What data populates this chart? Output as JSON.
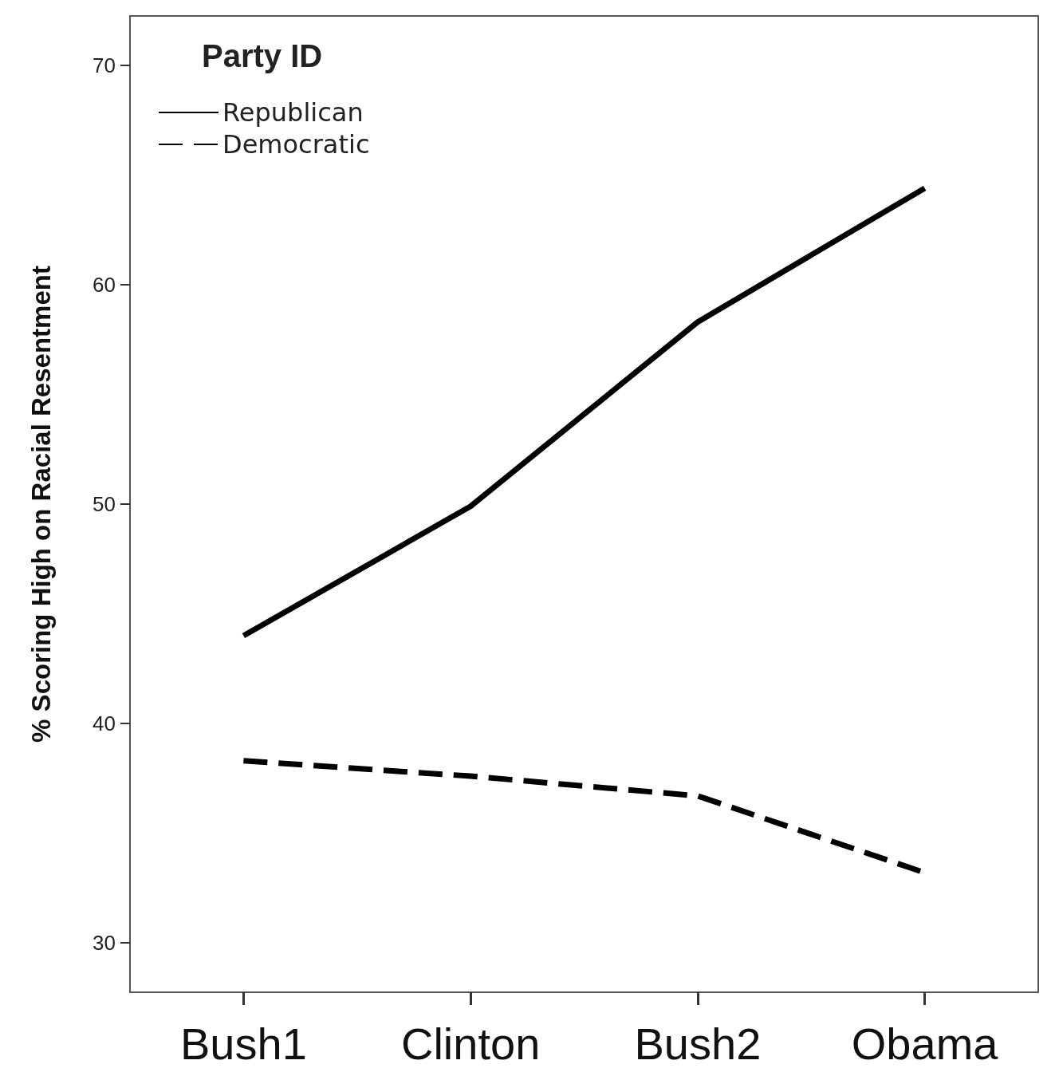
{
  "chart_data": {
    "type": "line",
    "categories": [
      "Bush1",
      "Clinton",
      "Bush2",
      "Obama"
    ],
    "series": [
      {
        "name": "Republican",
        "color": "#000000",
        "line_style": "solid",
        "values": [
          44.0,
          49.9,
          58.3,
          64.4
        ]
      },
      {
        "name": "Democratic",
        "color": "#000000",
        "line_style": "dashed",
        "values": [
          38.3,
          37.6,
          36.7,
          33.2
        ]
      }
    ],
    "ylabel": "% Scoring High on Racial Resentment",
    "legend_title": "Party ID",
    "legend": "top left",
    "marker": "none",
    "ylim": [
      27.75,
      72.25
    ],
    "yticks": [
      30,
      40,
      50,
      60,
      70
    ]
  }
}
